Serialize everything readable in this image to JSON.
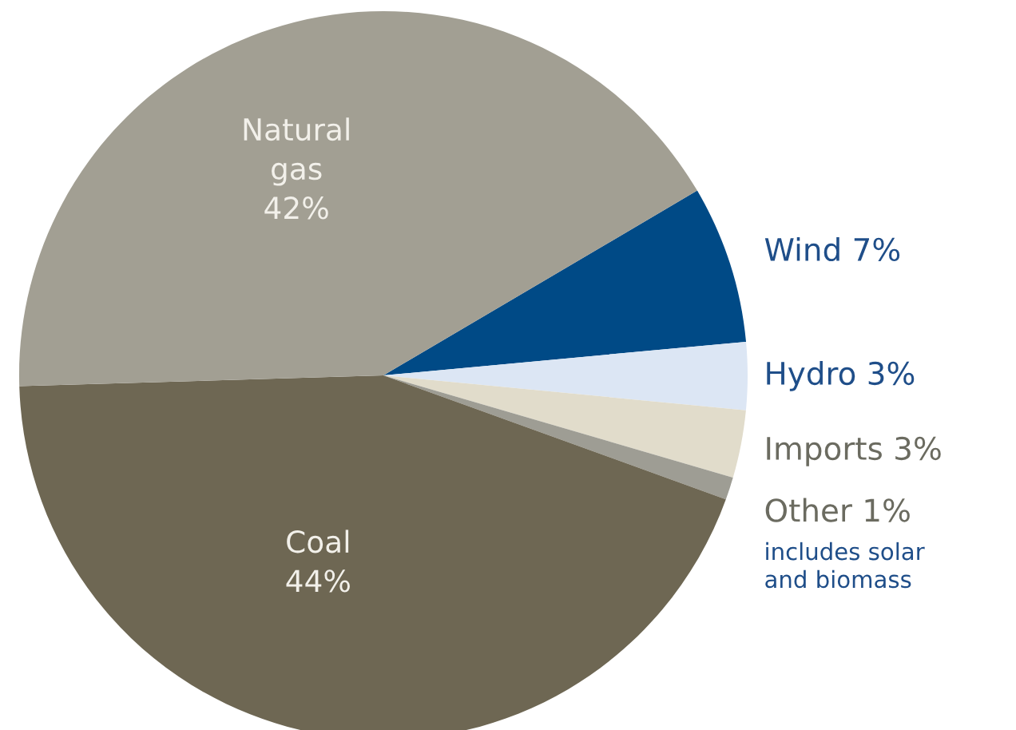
{
  "chart_data": {
    "type": "pie",
    "categories": [
      "Wind",
      "Hydro",
      "Imports",
      "Other",
      "Coal",
      "Natural gas"
    ],
    "values": [
      7,
      3,
      3,
      1,
      44,
      42
    ],
    "value_labels": [
      "7%",
      "3%",
      "3%",
      "1%",
      "44%",
      "42%"
    ],
    "colors": [
      "#004a86",
      "#dce6f4",
      "#e1dccb",
      "#9e9d94",
      "#6e6753",
      "#a29f93"
    ],
    "annotations": [
      "includes solar\nand biomass"
    ]
  }
}
